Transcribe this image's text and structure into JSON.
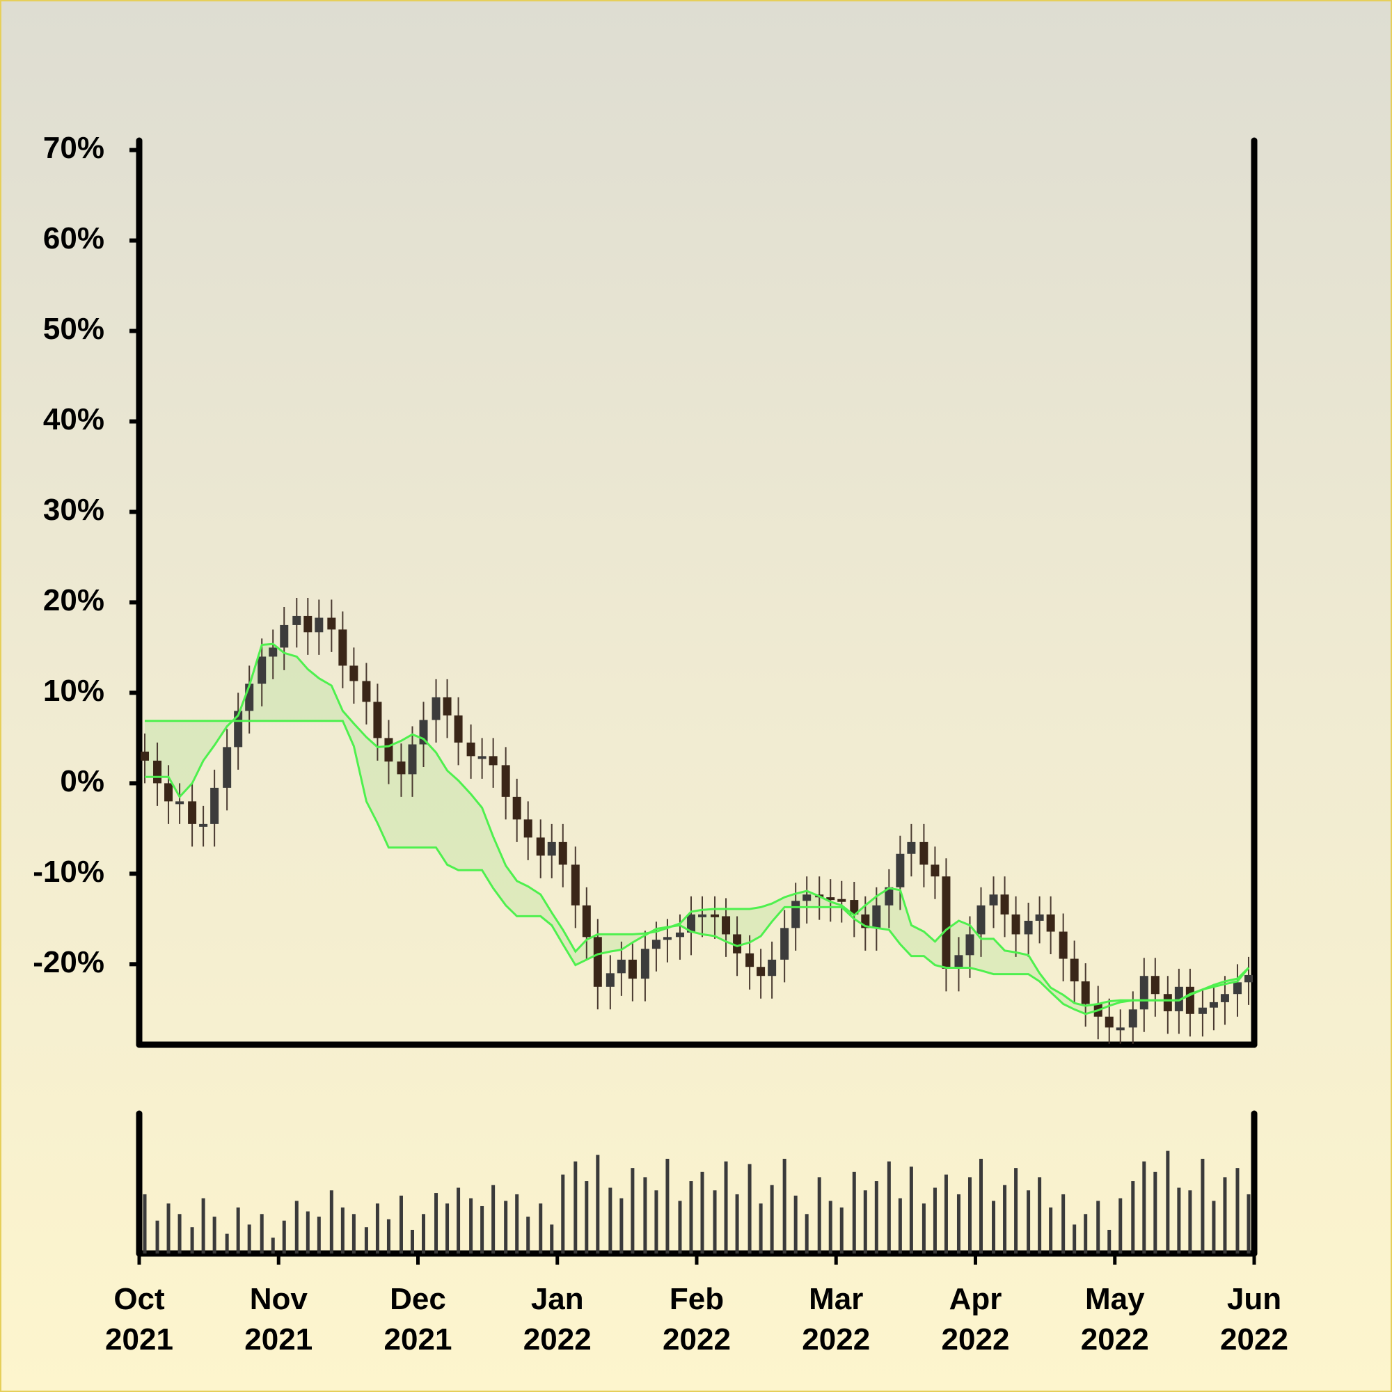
{
  "chart_data": {
    "type": "candlestick",
    "candle_color": "#3a2618",
    "xlim": [
      0,
      8
    ],
    "xticks": [
      {
        "value": 0,
        "label": "Oct 2021"
      },
      {
        "value": 1,
        "label": "Nov 2021"
      },
      {
        "value": 2,
        "label": "Dec 2021"
      },
      {
        "value": 3,
        "label": "Jan 2022"
      },
      {
        "value": 4,
        "label": "Feb 2022"
      },
      {
        "value": 5,
        "label": "Mar 2022"
      },
      {
        "value": 6,
        "label": "Apr 2022"
      },
      {
        "value": 7,
        "label": "May 2022"
      },
      {
        "value": 8,
        "label": "Jun 2022"
      }
    ],
    "ylim": [
      -28.9,
      71.2
    ],
    "yticks": [
      {
        "value": -20,
        "label": "-20%"
      },
      {
        "value": -10,
        "label": "-10%"
      },
      {
        "value": 0,
        "label": "0%"
      },
      {
        "value": 10,
        "label": "10%"
      },
      {
        "value": 20,
        "label": "20%"
      },
      {
        "value": 30,
        "label": "30%"
      },
      {
        "value": 40,
        "label": "40%"
      },
      {
        "value": 50,
        "label": "50%"
      },
      {
        "value": 60,
        "label": "60%"
      },
      {
        "value": 70,
        "label": "70%"
      }
    ],
    "x": [
      0.04,
      0.13,
      0.21,
      0.29,
      0.38,
      0.46,
      0.54,
      0.63,
      0.71,
      0.79,
      0.88,
      0.96,
      1.04,
      1.13,
      1.21,
      1.29,
      1.38,
      1.46,
      1.54,
      1.63,
      1.71,
      1.79,
      1.88,
      1.96,
      2.04,
      2.13,
      2.21,
      2.29,
      2.38,
      2.46,
      2.54,
      2.63,
      2.71,
      2.79,
      2.88,
      2.96,
      3.04,
      3.13,
      3.21,
      3.29,
      3.38,
      3.46,
      3.54,
      3.63,
      3.71,
      3.79,
      3.88,
      3.96,
      4.04,
      4.13,
      4.21,
      4.29,
      4.38,
      4.46,
      4.54,
      4.63,
      4.71,
      4.79,
      4.88,
      4.96,
      5.04,
      5.13,
      5.21,
      5.29,
      5.38,
      5.46,
      5.54,
      5.63,
      5.71,
      5.79,
      5.88,
      5.96,
      6.04,
      6.13,
      6.21,
      6.29,
      6.38,
      6.46,
      6.54,
      6.63,
      6.71,
      6.79,
      6.88,
      6.96,
      7.04,
      7.13,
      7.21,
      7.29,
      7.38,
      7.46,
      7.54,
      7.63,
      7.71,
      7.79,
      7.88,
      7.96
    ],
    "open": [
      3.5,
      2.5,
      0,
      -2,
      -2,
      -4.5,
      -4.5,
      -0.5,
      4,
      8,
      11,
      14,
      15,
      17.5,
      18.5,
      16.7,
      18.3,
      17,
      13,
      11.3,
      9,
      5,
      2.4,
      1,
      4.3,
      7,
      9.5,
      7.5,
      4.5,
      3,
      3,
      2,
      -1.5,
      -4,
      -6,
      -8,
      -6.5,
      -9,
      -13.5,
      -17,
      -22.5,
      -21,
      -19.5,
      -21.6,
      -18.3,
      -17.3,
      -17,
      -16.5,
      -14.5,
      -14.5,
      -14.7,
      -16.7,
      -18.8,
      -20.3,
      -21.3,
      -19.5,
      -16,
      -13,
      -12.3,
      -12.6,
      -12.8,
      -12.9,
      -14.5,
      -16,
      -13.5,
      -11.5,
      -7.8,
      -6.5,
      -9,
      -10.3,
      -20.5,
      -19,
      -16.7,
      -13.5,
      -12.3,
      -14.5,
      -16.7,
      -15.2,
      -14.5,
      -16.4,
      -19.4,
      -21.9,
      -24.4,
      -25.8,
      -27,
      -27,
      -25,
      -21.3,
      -23.3,
      -25.2,
      -22.5,
      -25.5,
      -24.8,
      -24.2,
      -23.3,
      -22
    ],
    "high": [
      5.5,
      4.5,
      2,
      0,
      0,
      -2.5,
      1.5,
      6,
      10,
      13,
      16,
      17,
      19.5,
      20.5,
      20.5,
      20.3,
      20.3,
      19,
      15,
      13.3,
      11,
      7,
      4.4,
      6.3,
      9,
      11.5,
      11.5,
      9.5,
      6.5,
      5,
      5,
      4,
      0.5,
      -2,
      -4,
      -4.5,
      -4.5,
      -7,
      -11.5,
      -15,
      -19,
      -17.5,
      -17.5,
      -16.3,
      -15.3,
      -15,
      -14.5,
      -12.5,
      -12.5,
      -12.5,
      -12.7,
      -14.7,
      -16.8,
      -18.3,
      -17.5,
      -14,
      -11,
      -10.3,
      -10.3,
      -10.6,
      -10.8,
      -10.9,
      -12.5,
      -11.5,
      -9.5,
      -5.8,
      -4.5,
      -4.5,
      -7,
      -8.3,
      -17,
      -14.7,
      -11.5,
      -10.3,
      -10.3,
      -12.5,
      -13.2,
      -12.5,
      -12.5,
      -14.4,
      -17.4,
      -19.9,
      -22.4,
      -23.8,
      -25,
      -23,
      -19.3,
      -19.3,
      -21.3,
      -20.5,
      -20.5,
      -22.8,
      -22.2,
      -21.3,
      -20,
      -19.2
    ],
    "low": [
      0,
      -2.5,
      -4.5,
      -4.5,
      -7,
      -7,
      -7,
      -3,
      1.5,
      5.5,
      8.5,
      11.5,
      12.5,
      15,
      14.2,
      14.2,
      14.5,
      10.5,
      8.8,
      6.5,
      2.5,
      -0.1,
      -1.5,
      -1.5,
      1.8,
      4.5,
      5,
      2,
      0.5,
      0.5,
      -0.5,
      -4,
      -6.5,
      -8.5,
      -10.5,
      -10.5,
      -11.5,
      -16,
      -19.5,
      -25,
      -25,
      -23.5,
      -24.1,
      -24.1,
      -20.8,
      -19.8,
      -19.5,
      -19,
      -17,
      -17.2,
      -19.2,
      -21.3,
      -22.8,
      -23.8,
      -23.8,
      -22,
      -18.5,
      -15.5,
      -15.1,
      -15.3,
      -15.4,
      -17,
      -18.5,
      -18.5,
      -16,
      -14,
      -10.3,
      -11.5,
      -12.8,
      -23,
      -23,
      -21.5,
      -19.2,
      -16,
      -17,
      -19.2,
      -19.2,
      -17.7,
      -18.9,
      -21.9,
      -24.4,
      -26.9,
      -28.3,
      -28.8,
      -28.8,
      -28.8,
      -27.5,
      -25.8,
      -27.7,
      -27.7,
      -28,
      -28,
      -27.3,
      -26.7,
      -25.8,
      -24.5
    ],
    "close": [
      2.5,
      0,
      -2,
      -2,
      -4.5,
      -4.5,
      -0.5,
      4,
      8,
      11,
      14,
      15,
      17.5,
      18.5,
      16.7,
      18.3,
      17,
      13,
      11.3,
      9,
      5,
      2.4,
      1,
      4.3,
      7,
      9.5,
      7.5,
      4.5,
      3,
      3,
      2,
      -1.5,
      -4,
      -6,
      -8,
      -6.5,
      -9,
      -13.5,
      -17,
      -22.5,
      -21,
      -19.5,
      -21.6,
      -18.3,
      -17.3,
      -17,
      -16.5,
      -14.5,
      -14.5,
      -14.7,
      -16.7,
      -18.8,
      -20.3,
      -21.3,
      -19.5,
      -16,
      -13,
      -12.3,
      -12.6,
      -12.8,
      -12.9,
      -14.5,
      -16,
      -13.5,
      -11.5,
      -7.8,
      -6.5,
      -9,
      -10.3,
      -20.5,
      -19,
      -16.7,
      -13.5,
      -12.3,
      -14.5,
      -16.7,
      -15.2,
      -14.5,
      -16.4,
      -19.4,
      -21.9,
      -24.4,
      -25.8,
      -27,
      -27,
      -25,
      -21.3,
      -23.3,
      -25.2,
      -22.5,
      -25.5,
      -24.8,
      -24.2,
      -23.3,
      -22,
      -21.2
    ],
    "cloud_fill": "rgba(120, 215, 100, 0.18)",
    "series": [
      {
        "color": "#4ef04e",
        "values": [
          0.7,
          0.7,
          0.7,
          -1.5,
          0,
          2.5,
          4.2,
          6.3,
          7.5,
          10.8,
          15.3,
          15.4,
          14.4,
          14,
          12.6,
          11.6,
          10.8,
          8,
          6.6,
          5.1,
          4,
          4.1,
          4.7,
          5.4,
          4.9,
          3.4,
          1.4,
          0.3,
          -1.2,
          -2.7,
          -5.9,
          -9.1,
          -10.8,
          -11.4,
          -12.3,
          -14.3,
          -16.2,
          -18.6,
          -17.3,
          -16.7,
          -16.7,
          -16.7,
          -16.7,
          -16.6,
          -16.4,
          -16,
          -15.5,
          -14.2,
          -14,
          -13.9,
          -13.9,
          -13.9,
          -13.9,
          -13.7,
          -13.3,
          -12.6,
          -12.2,
          -11.9,
          -12.5,
          -13.1,
          -13.5,
          -14.6,
          -13.5,
          -12.5,
          -11.6,
          -11.8,
          -15.7,
          -16.4,
          -17.5,
          -16.2,
          -15.2,
          -15.7,
          -17.2,
          -17.2,
          -18.5,
          -18.7,
          -19,
          -21,
          -22.6,
          -23.4,
          -24.3,
          -24.6,
          -24.4,
          -24.1,
          -24,
          -24,
          -24,
          -24,
          -24,
          -24,
          -23.4,
          -22.8,
          -22.3,
          -21.9,
          -21.6,
          -20.4
        ]
      },
      {
        "color": "#4ef04e",
        "values": [
          6.9,
          6.9,
          6.9,
          6.9,
          6.9,
          6.9,
          6.9,
          6.9,
          6.9,
          6.9,
          6.9,
          6.9,
          6.9,
          6.9,
          6.9,
          6.9,
          6.9,
          6.9,
          4.1,
          -2,
          -4.4,
          -7.1,
          -7.1,
          -7.1,
          -7.1,
          -7.1,
          -9,
          -9.6,
          -9.6,
          -9.6,
          -11.6,
          -13.5,
          -14.7,
          -14.7,
          -14.7,
          -15.7,
          -17.8,
          -20.1,
          -19.5,
          -18.9,
          -18.6,
          -18.4,
          -17.6,
          -16.8,
          -16.1,
          -15.9,
          -15.7,
          -16.4,
          -16.7,
          -16.9,
          -17.5,
          -18,
          -17.6,
          -16.9,
          -15.3,
          -13.7,
          -13.7,
          -13.7,
          -13.7,
          -13.7,
          -13.7,
          -15,
          -15.8,
          -16,
          -16.2,
          -17.8,
          -19.1,
          -19.1,
          -20.1,
          -20.4,
          -20.4,
          -20.4,
          -20.7,
          -21.1,
          -21.1,
          -21.1,
          -21.1,
          -21.9,
          -23.1,
          -24.4,
          -25,
          -25.5,
          -25.1,
          -24.6,
          -24.2,
          -24,
          -24,
          -24,
          -24,
          -24,
          -23.3,
          -22.8,
          -22.5,
          -22.2,
          -21.9,
          -20.4
        ]
      }
    ],
    "volume": {
      "color": "#3a3a3a",
      "ylim": [
        0,
        100
      ],
      "values": [
        45,
        25,
        38,
        30,
        20,
        42,
        28,
        15,
        35,
        22,
        30,
        12,
        25,
        40,
        32,
        28,
        48,
        35,
        30,
        20,
        38,
        26,
        44,
        18,
        30,
        46,
        38,
        50,
        42,
        36,
        52,
        40,
        45,
        28,
        38,
        22,
        60,
        70,
        55,
        75,
        50,
        42,
        65,
        58,
        48,
        72,
        40,
        55,
        62,
        48,
        70,
        45,
        68,
        38,
        52,
        72,
        44,
        30,
        58,
        40,
        35,
        62,
        48,
        55,
        70,
        42,
        66,
        38,
        50,
        60,
        45,
        58,
        72,
        40,
        52,
        65,
        48,
        58,
        35,
        45,
        22,
        30,
        40,
        18,
        42,
        55,
        70,
        62,
        78,
        50,
        48,
        72,
        40,
        58,
        65,
        45
      ]
    }
  }
}
